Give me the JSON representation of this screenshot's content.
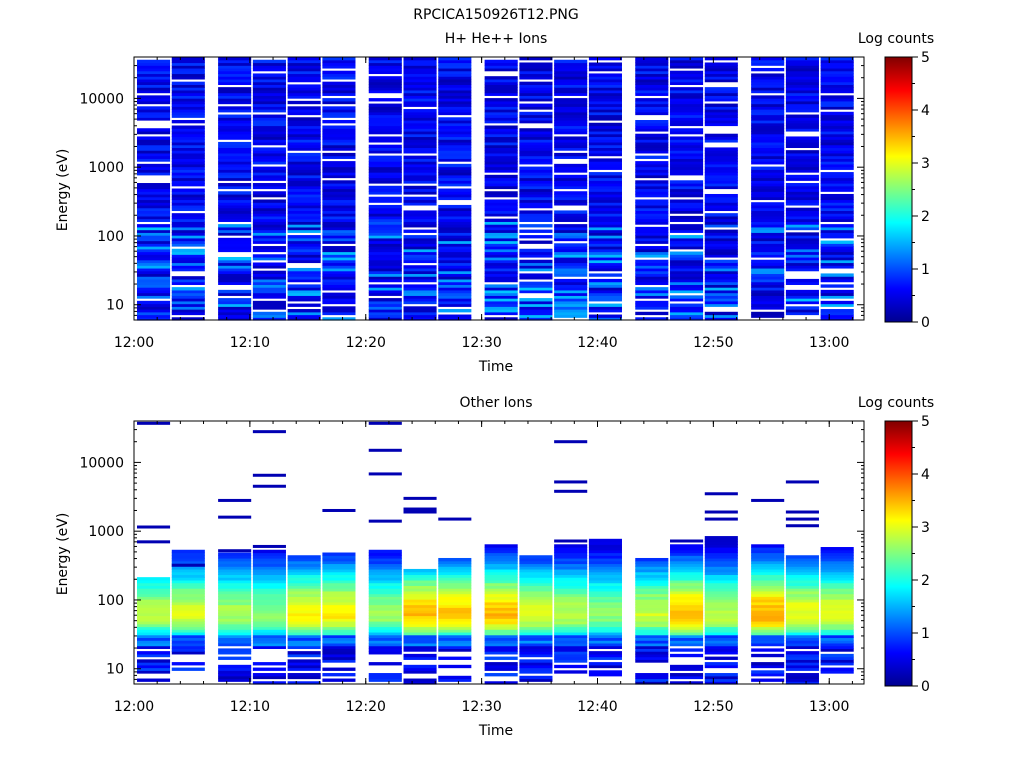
{
  "figure_title": "RPCICA150926T12.PNG",
  "chart_data": [
    {
      "type": "heatmap",
      "title": "H+ He++ Ions",
      "xlabel": "Time",
      "ylabel": "Energy (eV)",
      "x_ticks": [
        "12:00",
        "12:10",
        "12:20",
        "12:30",
        "12:40",
        "12:50",
        "13:00"
      ],
      "x_range": [
        "12:00",
        "13:03"
      ],
      "y_scale": "log",
      "y_range": [
        6,
        40000
      ],
      "y_ticks": [
        "10",
        "100",
        "1000",
        "10000"
      ],
      "time_bins_start": [
        "12:00",
        "12:03",
        "12:07",
        "12:10",
        "12:13",
        "12:16",
        "12:20",
        "12:23",
        "12:26",
        "12:30",
        "12:33",
        "12:36",
        "12:39",
        "12:43",
        "12:46",
        "12:49",
        "12:53",
        "12:56",
        "12:59"
      ],
      "energy_channels": 96,
      "energy_channel_range_eV": [
        6,
        40000
      ],
      "typical_log_counts": [
        0.2,
        0.9
      ],
      "seed": 17,
      "colorbar": {
        "label": "Log counts",
        "min": 0,
        "max": 5,
        "ticks": [
          "0",
          "1",
          "2",
          "3",
          "4",
          "5"
        ]
      }
    },
    {
      "type": "heatmap",
      "title": "Other Ions",
      "xlabel": "Time",
      "ylabel": "Energy (eV)",
      "x_ticks": [
        "12:00",
        "12:10",
        "12:20",
        "12:30",
        "12:40",
        "12:50",
        "13:00"
      ],
      "x_range": [
        "12:00",
        "13:03"
      ],
      "y_scale": "log",
      "y_range": [
        6,
        40000
      ],
      "y_ticks": [
        "10",
        "100",
        "1000",
        "10000"
      ],
      "time_bins_start": [
        "12:00",
        "12:03",
        "12:07",
        "12:10",
        "12:13",
        "12:16",
        "12:20",
        "12:23",
        "12:26",
        "12:30",
        "12:33",
        "12:36",
        "12:39",
        "12:43",
        "12:46",
        "12:49",
        "12:53",
        "12:56",
        "12:59"
      ],
      "energy_channels": 96,
      "energy_channel_range_eV": [
        6,
        40000
      ],
      "peak_energy_eV": 60,
      "peak_log_counts": [
        2.5,
        3.6
      ],
      "populated_upper_edge_eV": [
        220,
        550,
        500,
        580,
        450,
        520,
        560,
        290,
        420,
        680,
        480,
        680,
        800,
        420,
        700,
        850,
        650,
        450,
        600
      ],
      "sparse_high_energy_traces_eV": [
        [
          700,
          1150,
          37000
        ],
        [
          320
        ],
        [
          520,
          1600,
          2800
        ],
        [
          600,
          4500,
          6500,
          28000
        ],
        [],
        [
          2000
        ],
        [
          1400,
          6800,
          15000,
          37000
        ],
        [
          1900,
          2100,
          3000
        ],
        [
          1500
        ],
        [],
        [],
        [
          720,
          3800,
          5200,
          20000
        ],
        [],
        [],
        [
          720
        ],
        [
          1500,
          1900,
          3500
        ],
        [
          2800
        ],
        [
          1200,
          1500,
          1900,
          5200
        ],
        []
      ],
      "seed": 42,
      "colorbar": {
        "label": "Log counts",
        "min": 0,
        "max": 5,
        "ticks": [
          "0",
          "1",
          "2",
          "3",
          "4",
          "5"
        ]
      }
    }
  ]
}
